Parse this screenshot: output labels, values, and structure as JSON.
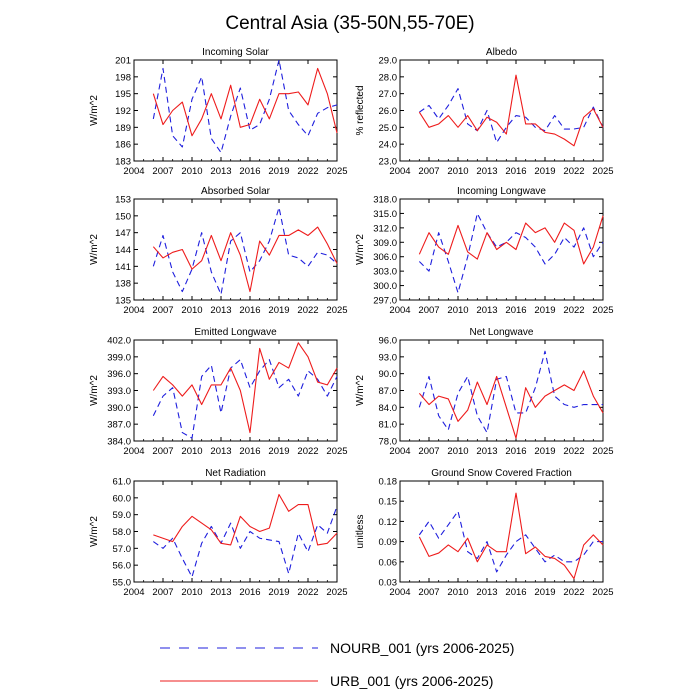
{
  "title": "Central Asia (35-50N,55-70E)",
  "colors": {
    "nourb": "#1f1fdd",
    "urb": "#ee1c1c"
  },
  "legend": [
    {
      "key": "nourb",
      "label": "NOURB_001 (yrs 2006-2025)",
      "dash": true
    },
    {
      "key": "urb",
      "label": "URB_001 (yrs 2006-2025)",
      "dash": false
    }
  ],
  "chart_data": [
    {
      "type": "line",
      "title": "Incoming Solar",
      "ylabel": "W/m^2",
      "xlim": [
        2004,
        2025
      ],
      "ylim": [
        183,
        201
      ],
      "xticks": [
        "2004",
        "2007",
        "2010",
        "2013",
        "2016",
        "2019",
        "2022",
        "2025"
      ],
      "yticks": [
        "183",
        "186",
        "189",
        "192",
        "195",
        "198",
        "201"
      ],
      "x": [
        2006,
        2007,
        2008,
        2009,
        2010,
        2011,
        2012,
        2013,
        2014,
        2015,
        2016,
        2017,
        2018,
        2019,
        2020,
        2021,
        2022,
        2023,
        2024,
        2025
      ],
      "series": [
        {
          "name": "NOURB_001",
          "values": [
            190.5,
            199.5,
            187.5,
            185.5,
            194.0,
            198.0,
            187.0,
            184.5,
            191.0,
            196.0,
            188.5,
            189.5,
            194.0,
            201.0,
            192.0,
            189.5,
            187.5,
            191.5,
            192.5,
            193.0
          ]
        },
        {
          "name": "URB_001",
          "values": [
            195.0,
            189.5,
            192.0,
            193.5,
            187.5,
            190.5,
            195.0,
            190.5,
            196.5,
            189.0,
            189.5,
            194.0,
            190.5,
            195.0,
            195.0,
            195.3,
            193.0,
            199.5,
            195.0,
            188.0
          ]
        }
      ]
    },
    {
      "type": "line",
      "title": "Albedo",
      "ylabel": "% reflected",
      "xlim": [
        2004,
        2025
      ],
      "ylim": [
        23.0,
        29.0
      ],
      "xticks": [
        "2004",
        "2007",
        "2010",
        "2013",
        "2016",
        "2019",
        "2022",
        "2025"
      ],
      "yticks": [
        "23.0",
        "24.0",
        "25.0",
        "26.0",
        "27.0",
        "28.0",
        "29.0"
      ],
      "x": [
        2006,
        2007,
        2008,
        2009,
        2010,
        2011,
        2012,
        2013,
        2014,
        2015,
        2016,
        2017,
        2018,
        2019,
        2020,
        2021,
        2022,
        2023,
        2024,
        2025
      ],
      "series": [
        {
          "name": "NOURB_001",
          "values": [
            25.9,
            26.3,
            25.5,
            26.3,
            27.3,
            25.2,
            24.8,
            26.0,
            24.1,
            25.0,
            25.7,
            25.6,
            25.0,
            24.8,
            25.7,
            24.9,
            24.9,
            25.0,
            26.2,
            25.0
          ]
        },
        {
          "name": "URB_001",
          "values": [
            25.9,
            25.0,
            25.2,
            25.7,
            25.0,
            25.7,
            24.8,
            25.6,
            25.3,
            24.6,
            28.1,
            25.2,
            25.2,
            24.7,
            24.6,
            24.3,
            23.9,
            25.6,
            26.1,
            25.0
          ]
        }
      ]
    },
    {
      "type": "line",
      "title": "Absorbed Solar",
      "ylabel": "W/m^2",
      "xlim": [
        2004,
        2025
      ],
      "ylim": [
        135,
        153
      ],
      "xticks": [
        "2004",
        "2007",
        "2010",
        "2013",
        "2016",
        "2019",
        "2022",
        "2025"
      ],
      "yticks": [
        "135",
        "138",
        "141",
        "144",
        "147",
        "150",
        "153"
      ],
      "x": [
        2006,
        2007,
        2008,
        2009,
        2010,
        2011,
        2012,
        2013,
        2014,
        2015,
        2016,
        2017,
        2018,
        2019,
        2020,
        2021,
        2022,
        2023,
        2024,
        2025
      ],
      "series": [
        {
          "name": "NOURB_001",
          "values": [
            141.0,
            146.5,
            140.0,
            136.5,
            140.5,
            147.0,
            140.0,
            136.0,
            145.5,
            147.0,
            140.0,
            142.0,
            145.5,
            151.5,
            143.0,
            142.5,
            141.0,
            143.5,
            143.0,
            141.5
          ]
        },
        {
          "name": "URB_001",
          "values": [
            144.5,
            142.5,
            143.5,
            144.0,
            140.5,
            142.0,
            146.5,
            142.0,
            147.0,
            143.0,
            136.5,
            145.5,
            143.0,
            146.5,
            146.5,
            147.5,
            146.5,
            148.0,
            145.0,
            141.5
          ]
        }
      ]
    },
    {
      "type": "line",
      "title": "Incoming Longwave",
      "ylabel": "W/m^2",
      "xlim": [
        2004,
        2025
      ],
      "ylim": [
        297.0,
        318.0
      ],
      "xticks": [
        "2004",
        "2007",
        "2010",
        "2013",
        "2016",
        "2019",
        "2022",
        "2025"
      ],
      "yticks": [
        "297.0",
        "300.0",
        "303.0",
        "306.0",
        "309.0",
        "312.0",
        "315.0",
        "318.0"
      ],
      "x": [
        2006,
        2007,
        2008,
        2009,
        2010,
        2011,
        2012,
        2013,
        2014,
        2015,
        2016,
        2017,
        2018,
        2019,
        2020,
        2021,
        2022,
        2023,
        2024,
        2025
      ],
      "series": [
        {
          "name": "NOURB_001",
          "values": [
            305.0,
            303.0,
            311.0,
            305.0,
            298.5,
            306.0,
            315.0,
            311.0,
            308.0,
            309.0,
            311.0,
            310.0,
            308.0,
            304.5,
            306.5,
            310.0,
            308.0,
            312.0,
            306.0,
            309.0
          ]
        },
        {
          "name": "URB_001",
          "values": [
            306.5,
            311.0,
            308.0,
            306.5,
            312.5,
            307.0,
            305.5,
            311.0,
            307.5,
            309.0,
            307.5,
            313.0,
            311.0,
            312.0,
            309.0,
            313.0,
            311.5,
            304.5,
            308.0,
            314.5
          ]
        }
      ]
    },
    {
      "type": "line",
      "title": "Emitted Longwave",
      "ylabel": "W/m^2",
      "xlim": [
        2004,
        2025
      ],
      "ylim": [
        384.0,
        402.0
      ],
      "xticks": [
        "2004",
        "2007",
        "2010",
        "2013",
        "2016",
        "2019",
        "2022",
        "2025"
      ],
      "yticks": [
        "384.0",
        "387.0",
        "390.0",
        "393.0",
        "396.0",
        "399.0",
        "402.0"
      ],
      "x": [
        2006,
        2007,
        2008,
        2009,
        2010,
        2011,
        2012,
        2013,
        2014,
        2015,
        2016,
        2017,
        2018,
        2019,
        2020,
        2021,
        2022,
        2023,
        2024,
        2025
      ],
      "series": [
        {
          "name": "NOURB_001",
          "values": [
            388.5,
            392.0,
            393.5,
            385.5,
            384.5,
            395.5,
            397.5,
            389.0,
            397.0,
            398.5,
            393.5,
            396.5,
            398.5,
            393.5,
            395.0,
            392.0,
            396.5,
            395.0,
            392.0,
            395.5
          ]
        },
        {
          "name": "URB_001",
          "values": [
            393.0,
            395.5,
            394.0,
            392.0,
            394.0,
            390.5,
            394.0,
            394.0,
            397.0,
            393.0,
            385.5,
            400.5,
            395.0,
            398.0,
            397.0,
            401.5,
            399.0,
            394.5,
            394.0,
            397.0
          ]
        }
      ]
    },
    {
      "type": "line",
      "title": "Net Longwave",
      "ylabel": "W/m^2",
      "xlim": [
        2004,
        2025
      ],
      "ylim": [
        78.0,
        96.0
      ],
      "xticks": [
        "2004",
        "2007",
        "2010",
        "2013",
        "2016",
        "2019",
        "2022",
        "2025"
      ],
      "yticks": [
        "78.0",
        "81.0",
        "84.0",
        "87.0",
        "90.0",
        "93.0",
        "96.0"
      ],
      "x": [
        2006,
        2007,
        2008,
        2009,
        2010,
        2011,
        2012,
        2013,
        2014,
        2015,
        2016,
        2017,
        2018,
        2019,
        2020,
        2021,
        2022,
        2023,
        2024,
        2025
      ],
      "series": [
        {
          "name": "NOURB_001",
          "values": [
            84.0,
            89.5,
            82.5,
            80.0,
            86.5,
            89.5,
            82.5,
            79.5,
            89.0,
            89.5,
            83.0,
            83.0,
            87.5,
            94.0,
            86.0,
            84.5,
            84.0,
            84.5,
            84.5,
            84.5
          ]
        },
        {
          "name": "URB_001",
          "values": [
            86.5,
            84.5,
            86.0,
            85.5,
            81.5,
            83.5,
            88.5,
            84.5,
            89.5,
            84.0,
            78.5,
            87.5,
            84.0,
            86.0,
            87.0,
            88.0,
            87.0,
            90.5,
            86.0,
            83.0
          ]
        }
      ]
    },
    {
      "type": "line",
      "title": "Net Radiation",
      "ylabel": "W/m^2",
      "xlim": [
        2004,
        2025
      ],
      "ylim": [
        55.0,
        61.0
      ],
      "xticks": [
        "2004",
        "2007",
        "2010",
        "2013",
        "2016",
        "2019",
        "2022",
        "2025"
      ],
      "yticks": [
        "55.0",
        "56.0",
        "57.0",
        "58.0",
        "59.0",
        "60.0",
        "61.0"
      ],
      "x": [
        2006,
        2007,
        2008,
        2009,
        2010,
        2011,
        2012,
        2013,
        2014,
        2015,
        2016,
        2017,
        2018,
        2019,
        2020,
        2021,
        2022,
        2023,
        2024,
        2025
      ],
      "series": [
        {
          "name": "NOURB_001",
          "values": [
            57.4,
            57.0,
            57.6,
            56.4,
            55.3,
            57.3,
            58.3,
            57.3,
            58.5,
            57.0,
            58.0,
            57.6,
            57.5,
            57.4,
            55.5,
            57.9,
            56.8,
            58.4,
            57.9,
            59.5
          ]
        },
        {
          "name": "URB_001",
          "values": [
            57.8,
            57.6,
            57.4,
            58.3,
            58.9,
            58.5,
            58.1,
            57.3,
            57.2,
            58.9,
            58.3,
            58.0,
            58.2,
            60.2,
            59.2,
            59.6,
            59.6,
            57.2,
            57.3,
            57.9
          ]
        }
      ]
    },
    {
      "type": "line",
      "title": "Ground Snow Covered Fraction",
      "ylabel": "unitless",
      "xlim": [
        2004,
        2025
      ],
      "ylim": [
        0.03,
        0.18
      ],
      "xticks": [
        "2004",
        "2007",
        "2010",
        "2013",
        "2016",
        "2019",
        "2022",
        "2025"
      ],
      "yticks": [
        "0.03",
        "0.06",
        "0.09",
        "0.12",
        "0.15",
        "0.18"
      ],
      "x": [
        2006,
        2007,
        2008,
        2009,
        2010,
        2011,
        2012,
        2013,
        2014,
        2015,
        2016,
        2017,
        2018,
        2019,
        2020,
        2021,
        2022,
        2023,
        2024,
        2025
      ],
      "series": [
        {
          "name": "NOURB_001",
          "values": [
            0.1,
            0.12,
            0.095,
            0.115,
            0.135,
            0.075,
            0.065,
            0.09,
            0.045,
            0.07,
            0.09,
            0.1,
            0.08,
            0.06,
            0.07,
            0.06,
            0.06,
            0.07,
            0.09,
            0.09
          ]
        },
        {
          "name": "URB_001",
          "values": [
            0.097,
            0.068,
            0.073,
            0.085,
            0.075,
            0.095,
            0.06,
            0.085,
            0.075,
            0.075,
            0.162,
            0.072,
            0.082,
            0.068,
            0.065,
            0.055,
            0.035,
            0.085,
            0.1,
            0.085
          ]
        }
      ]
    }
  ]
}
